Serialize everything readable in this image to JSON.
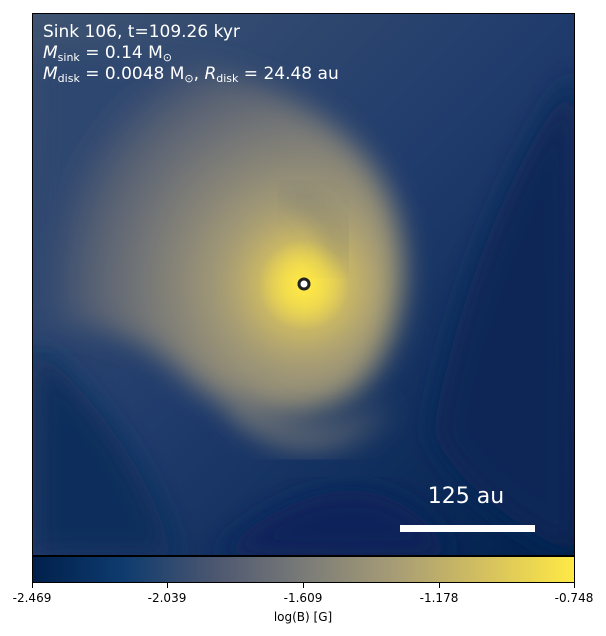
{
  "annotation": {
    "line1": "Sink 106, t=109.26 kyr",
    "msink_symbol": "M",
    "msink_sub": "sink",
    "msink_value": " = 0.14 M",
    "msink_unit_sub": "⊙",
    "mdisk_symbol": "M",
    "mdisk_sub": "disk",
    "mdisk_value": " = 0.0048 M",
    "mdisk_unit_sub": "⊙",
    "rdisk_sep": ", ",
    "rdisk_symbol": "R",
    "rdisk_sub": "disk",
    "rdisk_value": " = 24.48 au"
  },
  "scale_bar": {
    "label": "125 au"
  },
  "colorbar": {
    "label": "log(B) [G]",
    "ticks": [
      "-2.469",
      "-2.039",
      "-1.609",
      "-1.178",
      "-0.748"
    ],
    "colormap": "cividis",
    "colors": [
      "#00204c",
      "#0e3b6e",
      "#4b5670",
      "#7a7b78",
      "#a69c75",
      "#d4c05f",
      "#ffe945"
    ]
  }
}
